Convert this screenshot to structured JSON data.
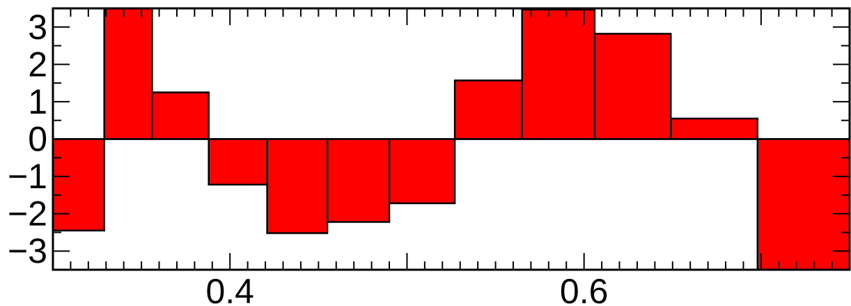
{
  "chart_data": {
    "type": "bar",
    "style": "step-histogram",
    "fill_color": "#ff0000",
    "edge_color": "#000000",
    "bin_edges": [
      0.3,
      0.329,
      0.356,
      0.388,
      0.421,
      0.455,
      0.49,
      0.527,
      0.565,
      0.606,
      0.649,
      0.698,
      0.75
    ],
    "values": [
      -2.45,
      3.5,
      1.25,
      -1.22,
      -2.52,
      -2.22,
      -1.72,
      1.57,
      3.47,
      2.82,
      0.55,
      -3.5
    ],
    "xlim": [
      0.3,
      0.75
    ],
    "ylim": [
      -3.5,
      3.5
    ],
    "xticks": [
      {
        "value": 0.4,
        "label": "0.4"
      },
      {
        "value": 0.6,
        "label": "0.6"
      }
    ],
    "yticks": [
      {
        "value": 3,
        "label": "3"
      },
      {
        "value": 2,
        "label": "2"
      },
      {
        "value": 1,
        "label": "1"
      },
      {
        "value": 0,
        "label": "0"
      },
      {
        "value": -1,
        "label": "−1"
      },
      {
        "value": -2,
        "label": "−2"
      },
      {
        "value": -3,
        "label": "−3"
      }
    ],
    "x_minor_step": 0.01,
    "x_major_step": 0.1,
    "y_minor_step": 0.5,
    "grid": false,
    "title": "",
    "xlabel": "",
    "ylabel": ""
  }
}
